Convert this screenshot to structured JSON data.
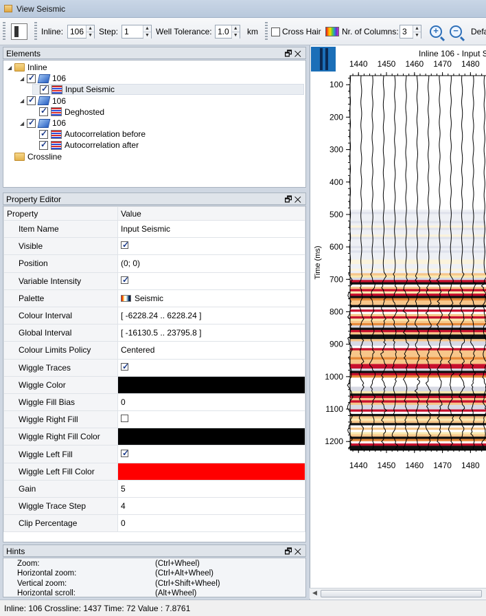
{
  "window": {
    "title": "View Seismic"
  },
  "toolbar": {
    "inline_label": "Inline:",
    "inline_value": "106",
    "step_label": "Step:",
    "step_value": "1",
    "well_tol_label": "Well Tolerance:",
    "well_tol_value": "1.0",
    "well_tol_unit": "km",
    "crosshair_label": "Cross Hair",
    "columns_label": "Nr. of Columns:",
    "columns_value": "3",
    "default_label": "Defa"
  },
  "elements_panel": {
    "title": "Elements",
    "tree": [
      {
        "label": "Inline",
        "type": "folder",
        "indent": 0,
        "arrow": "◢"
      },
      {
        "label": "106",
        "type": "cube",
        "indent": 1,
        "arrow": "◢",
        "checked": true
      },
      {
        "label": "Input Seismic",
        "type": "seismic",
        "indent": 2,
        "checked": true,
        "selected": true
      },
      {
        "label": "106",
        "type": "cube",
        "indent": 1,
        "arrow": "◢",
        "checked": true
      },
      {
        "label": "Deghosted",
        "type": "seismic",
        "indent": 2,
        "checked": true
      },
      {
        "label": "106",
        "type": "cube",
        "indent": 1,
        "arrow": "◢",
        "checked": true
      },
      {
        "label": "Autocorrelation before",
        "type": "seismic",
        "indent": 2,
        "checked": true
      },
      {
        "label": "Autocorrelation after",
        "type": "seismic",
        "indent": 2,
        "checked": true
      },
      {
        "label": "Crossline",
        "type": "folder",
        "indent": 0
      }
    ]
  },
  "property_editor": {
    "title": "Property Editor",
    "col_property": "Property",
    "col_value": "Value",
    "rows": [
      {
        "name": "Item Name",
        "value": "Input Seismic",
        "kind": "text"
      },
      {
        "name": "Visible",
        "value": "",
        "kind": "check",
        "checked": true
      },
      {
        "name": "Position",
        "value": "(0; 0)",
        "kind": "text"
      },
      {
        "name": "Variable Intensity",
        "value": "",
        "kind": "check",
        "checked": true
      },
      {
        "name": "Palette",
        "value": "Seismic",
        "kind": "palette"
      },
      {
        "name": "Colour Interval",
        "value": "[ -6228.24 .. 6228.24 ]",
        "kind": "text"
      },
      {
        "name": "Global Interval",
        "value": "[ -16130.5 .. 23795.8 ]",
        "kind": "text"
      },
      {
        "name": "Colour Limits Policy",
        "value": "Centered",
        "kind": "text"
      },
      {
        "name": "Wiggle Traces",
        "value": "",
        "kind": "check",
        "checked": true
      },
      {
        "name": "Wiggle Color",
        "value": "",
        "kind": "color",
        "color": "#000000"
      },
      {
        "name": "Wiggle Fill Bias",
        "value": "0",
        "kind": "text"
      },
      {
        "name": "Wiggle Right Fill",
        "value": "",
        "kind": "check",
        "checked": false
      },
      {
        "name": "Wiggle Right Fill Color",
        "value": "",
        "kind": "color",
        "color": "#000000"
      },
      {
        "name": "Wiggle Left Fill",
        "value": "",
        "kind": "check",
        "checked": true
      },
      {
        "name": "Wiggle Left Fill Color",
        "value": "",
        "kind": "color",
        "color": "#ff0000"
      },
      {
        "name": "Gain",
        "value": "5",
        "kind": "text"
      },
      {
        "name": "Wiggle Trace Step",
        "value": "4",
        "kind": "text"
      },
      {
        "name": "Clip Percentage",
        "value": "0",
        "kind": "text"
      }
    ]
  },
  "hints": {
    "title": "Hints",
    "items": [
      {
        "action": "Zoom:",
        "shortcut": "(Ctrl+Wheel)"
      },
      {
        "action": "Horizontal zoom:",
        "shortcut": "(Ctrl+Alt+Wheel)"
      },
      {
        "action": "Vertical zoom:",
        "shortcut": "(Ctrl+Shift+Wheel)"
      },
      {
        "action": "Horizontal scroll:",
        "shortcut": "(Alt+Wheel)"
      }
    ]
  },
  "status_bar": {
    "text": "Inline: 106 Crossline: 1437 Time: 72 Value : 7.8761"
  },
  "chart_data": {
    "type": "heatmap",
    "title": "Inline 106 - Input S",
    "xlabel": "",
    "ylabel": "Time (ms)",
    "x_ticks": [
      1440,
      1450,
      1460,
      1470,
      1480
    ],
    "y_ticks": [
      100,
      200,
      300,
      400,
      500,
      600,
      700,
      800,
      900,
      1000,
      1100,
      1200
    ],
    "xlim": [
      1437,
      1488
    ],
    "ylim": [
      72,
      1225
    ],
    "palette": "Seismic",
    "wiggle_color": "#000000",
    "left_fill_color": "#ff0000"
  }
}
